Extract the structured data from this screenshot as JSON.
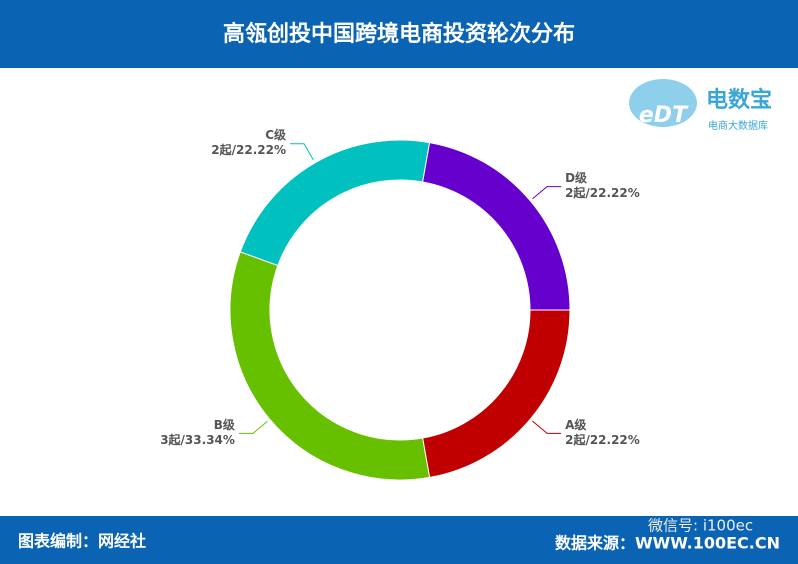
{
  "chart_data": {
    "type": "donut",
    "title": "高瓴创投中国跨境电商投资轮次分布",
    "categories": [
      "D级",
      "A级",
      "B级",
      "C级"
    ],
    "values": [
      22.22,
      22.22,
      33.34,
      22.22
    ],
    "value_labels": [
      "2起/22.22%",
      "2起/22.22%",
      "3起/33.34%",
      "2起/22.22%"
    ],
    "colors": [
      "#6600cc",
      "#c00000",
      "#66c000",
      "#00c0c0"
    ]
  },
  "logo": {
    "mark": "eDT",
    "name": "电数宝",
    "tagline": "电商大数据库"
  },
  "footer": {
    "credit": "图表编制：网经社",
    "source": "数据来源：WWW.100EC.CN",
    "watermark": "微信号: i100ec"
  }
}
